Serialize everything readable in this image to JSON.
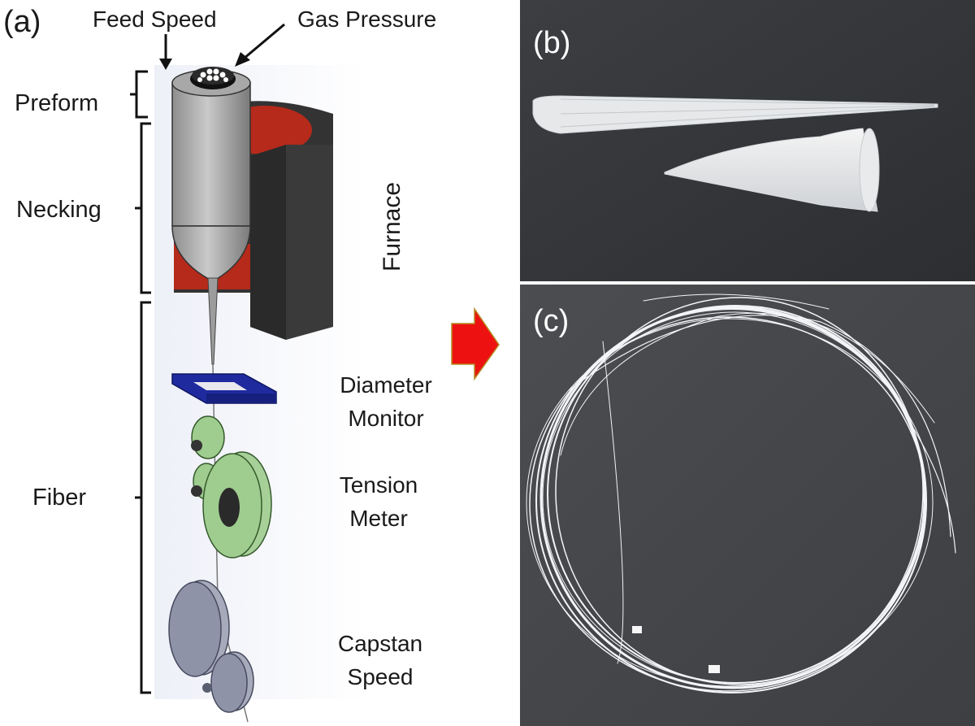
{
  "figure": {
    "panel_a": {
      "letter": "(a)",
      "top_labels": {
        "feed_speed": "Feed Speed",
        "gas_pressure": "Gas Pressure"
      },
      "stages": {
        "preform": "Preform",
        "necking": "Necking",
        "fiber": "Fiber"
      },
      "components": {
        "furnace": "Furnace",
        "diameter_monitor": [
          "Diameter",
          "Monitor"
        ],
        "tension_meter": [
          "Tension",
          "Meter"
        ],
        "capstan_speed": [
          "Capstan",
          "Speed"
        ]
      }
    },
    "panel_b": {
      "letter": "(b)"
    },
    "panel_c": {
      "letter": "(c)"
    }
  }
}
